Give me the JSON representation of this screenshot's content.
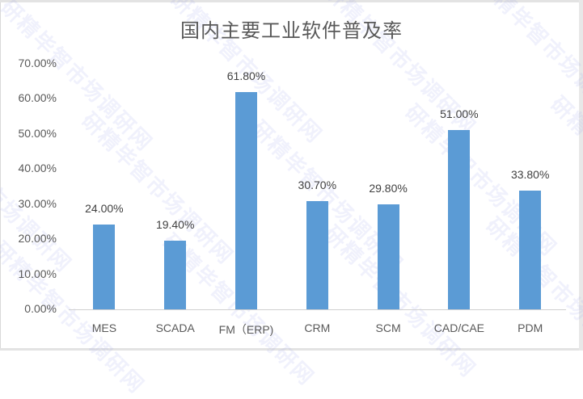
{
  "chart_data": {
    "type": "bar",
    "title": "国内主要工业软件普及率",
    "categories": [
      "MES",
      "SCADA",
      "FM（ERP)",
      "CRM",
      "SCM",
      "CAD/CAE",
      "PDM"
    ],
    "values": [
      24.0,
      19.4,
      61.8,
      30.7,
      29.8,
      51.0,
      33.8
    ],
    "value_labels": [
      "24.00%",
      "19.40%",
      "61.80%",
      "30.70%",
      "29.80%",
      "51.00%",
      "33.80%"
    ],
    "xlabel": "",
    "ylabel": "",
    "ylim": [
      0,
      70
    ],
    "yticks": [
      "0.00%",
      "10.00%",
      "20.00%",
      "30.00%",
      "40.00%",
      "50.00%",
      "60.00%",
      "70.00%"
    ],
    "grid": false,
    "legend": "none",
    "bar_color": "#5b9bd5"
  },
  "watermark": "研精毕智市场调研网"
}
